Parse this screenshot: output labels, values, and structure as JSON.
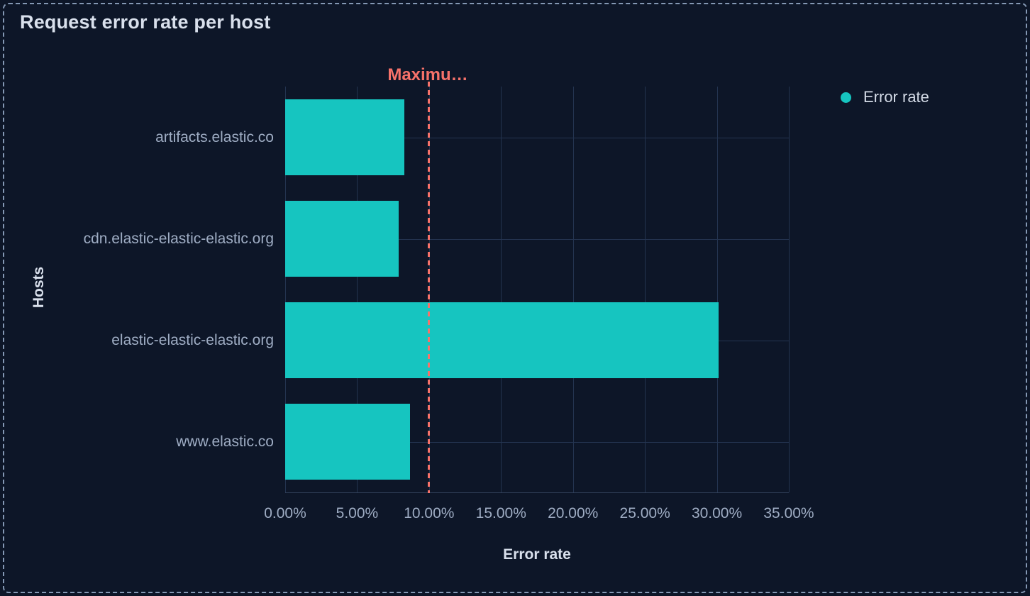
{
  "panel": {
    "title": "Request error rate per host"
  },
  "legend": {
    "position": "top-right",
    "items": [
      {
        "label": "Error rate",
        "color": "#16c5c0"
      }
    ]
  },
  "colors": {
    "background": "#0d1628",
    "panel_border": "#8498b4",
    "bar": "#16c5c0",
    "reference": "#f6726a",
    "grid": "#243450",
    "axis_line": "#34425d",
    "tick_text": "#9fadc4",
    "title_text": "#d9e0ec"
  },
  "chart_data": {
    "type": "bar",
    "orientation": "horizontal",
    "title": "Request error rate per host",
    "series": [
      {
        "name": "Error rate",
        "values": [
          8.3,
          7.9,
          30.1,
          8.7
        ]
      }
    ],
    "categories": [
      "artifacts.elastic.co",
      "cdn.elastic-elastic-elastic.org",
      "elastic-elastic-elastic.org",
      "www.elastic.co"
    ],
    "xlabel": "Error rate",
    "ylabel": "Hosts",
    "xlim": [
      0,
      35
    ],
    "x_tick_values": [
      0,
      5,
      10,
      15,
      20,
      25,
      30,
      35
    ],
    "x_tick_labels": [
      "0.00%",
      "5.00%",
      "10.00%",
      "15.00%",
      "20.00%",
      "25.00%",
      "30.00%",
      "35.00%"
    ],
    "value_format": "percent",
    "grid": true,
    "legend_position": "top-right",
    "reference_line": {
      "value": 10,
      "label": "Maximu…",
      "label_full_hint": "truncated",
      "color": "#f6726a",
      "style": "dashed",
      "orientation": "vertical"
    }
  }
}
